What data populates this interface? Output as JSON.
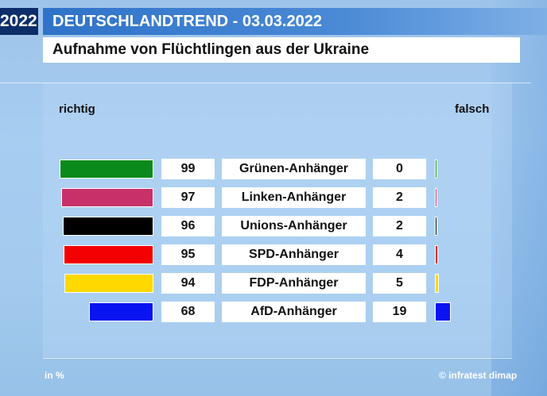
{
  "header": {
    "year_fragment": "2022",
    "title": "DEUTSCHLANDTREND - 03.03.2022",
    "subtitle": "Aufnahme von Flüchtlingen aus der Ukraine"
  },
  "columns": {
    "left": "richtig",
    "right": "falsch"
  },
  "footer": {
    "unit": "in %",
    "source": "© infratest dimap"
  },
  "chart_data": {
    "type": "bar",
    "categories": [
      "Grünen-Anhänger",
      "Linken-Anhänger",
      "Unions-Anhänger",
      "SPD-Anhänger",
      "FDP-Anhänger",
      "AfD-Anhänger"
    ],
    "series": [
      {
        "name": "richtig",
        "values": [
          99,
          97,
          96,
          95,
          94,
          68
        ]
      },
      {
        "name": "falsch",
        "values": [
          0,
          2,
          2,
          4,
          5,
          19
        ]
      }
    ],
    "colors": [
      "#0a8a1a",
      "#c8306a",
      "#000000",
      "#f30000",
      "#ffd800",
      "#0a14f0"
    ],
    "xlim": [
      0,
      100
    ]
  }
}
